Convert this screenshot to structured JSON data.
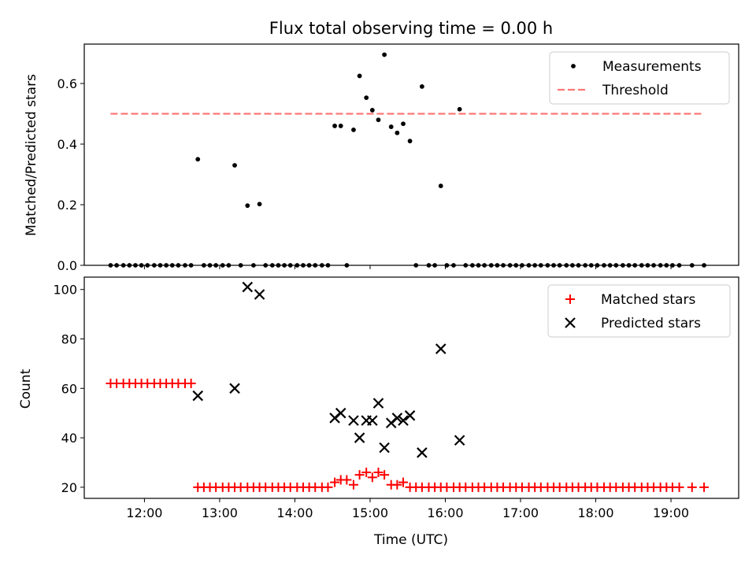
{
  "chart_data": [
    {
      "type": "scatter",
      "title": "Flux total observing time = 0.00 h",
      "xlabel": "",
      "ylabel": "Matched/Predicted stars",
      "xlim": [
        11.2,
        19.9
      ],
      "ylim": [
        0,
        0.73
      ],
      "yticks": [
        "0.0",
        "0.2",
        "0.4",
        "0.6"
      ],
      "grid": false,
      "legend_position": "top-right",
      "series": [
        {
          "name": "Measurements",
          "kind": "scatter",
          "marker": "dot",
          "color": "#000000",
          "points": [
            [
              11.55,
              0
            ],
            [
              11.63,
              0
            ],
            [
              11.72,
              0
            ],
            [
              11.8,
              0
            ],
            [
              11.88,
              0
            ],
            [
              11.96,
              0
            ],
            [
              12.04,
              0
            ],
            [
              12.13,
              0
            ],
            [
              12.21,
              0
            ],
            [
              12.29,
              0
            ],
            [
              12.37,
              0
            ],
            [
              12.45,
              0
            ],
            [
              12.54,
              0
            ],
            [
              12.62,
              0
            ],
            [
              12.71,
              0.35
            ],
            [
              12.79,
              0
            ],
            [
              12.87,
              0
            ],
            [
              12.95,
              0
            ],
            [
              13.04,
              0
            ],
            [
              13.12,
              0
            ],
            [
              13.2,
              0.33
            ],
            [
              13.28,
              0
            ],
            [
              13.37,
              0.197
            ],
            [
              13.45,
              0
            ],
            [
              13.53,
              0.202
            ],
            [
              13.61,
              0
            ],
            [
              13.7,
              0
            ],
            [
              13.78,
              0
            ],
            [
              13.86,
              0
            ],
            [
              13.94,
              0
            ],
            [
              14.03,
              0
            ],
            [
              14.11,
              0
            ],
            [
              14.19,
              0
            ],
            [
              14.27,
              0
            ],
            [
              14.36,
              0
            ],
            [
              14.44,
              0
            ],
            [
              14.53,
              0.46
            ],
            [
              14.61,
              0.46
            ],
            [
              14.69,
              0
            ],
            [
              14.78,
              0.447
            ],
            [
              14.86,
              0.625
            ],
            [
              14.95,
              0.553
            ],
            [
              15.03,
              0.512
            ],
            [
              15.11,
              0.48
            ],
            [
              15.19,
              0.695
            ],
            [
              15.28,
              0.457
            ],
            [
              15.36,
              0.437
            ],
            [
              15.44,
              0.467
            ],
            [
              15.53,
              0.41
            ],
            [
              15.61,
              0
            ],
            [
              15.69,
              0.59
            ],
            [
              15.78,
              0
            ],
            [
              15.86,
              0
            ],
            [
              15.94,
              0.262
            ],
            [
              16.02,
              0
            ],
            [
              16.11,
              0
            ],
            [
              16.19,
              0.515
            ],
            [
              16.27,
              0
            ],
            [
              16.36,
              0
            ],
            [
              16.44,
              0
            ],
            [
              16.52,
              0
            ],
            [
              16.61,
              0
            ],
            [
              16.69,
              0
            ],
            [
              16.77,
              0
            ],
            [
              16.86,
              0
            ],
            [
              16.94,
              0
            ],
            [
              17.02,
              0
            ],
            [
              17.11,
              0
            ],
            [
              17.19,
              0
            ],
            [
              17.27,
              0
            ],
            [
              17.36,
              0
            ],
            [
              17.44,
              0
            ],
            [
              17.52,
              0
            ],
            [
              17.61,
              0
            ],
            [
              17.69,
              0
            ],
            [
              17.77,
              0
            ],
            [
              17.86,
              0
            ],
            [
              17.94,
              0
            ],
            [
              18.02,
              0
            ],
            [
              18.11,
              0
            ],
            [
              18.19,
              0
            ],
            [
              18.27,
              0
            ],
            [
              18.36,
              0
            ],
            [
              18.44,
              0
            ],
            [
              18.52,
              0
            ],
            [
              18.61,
              0
            ],
            [
              18.69,
              0
            ],
            [
              18.77,
              0
            ],
            [
              18.86,
              0
            ],
            [
              18.94,
              0
            ],
            [
              19.02,
              0
            ],
            [
              19.11,
              0
            ],
            [
              19.28,
              0
            ],
            [
              19.44,
              0
            ]
          ]
        },
        {
          "name": "Threshold",
          "kind": "line",
          "style": "dashed",
          "color": "#ff7777",
          "points": [
            [
              11.55,
              0.5
            ],
            [
              19.44,
              0.5
            ]
          ]
        }
      ]
    },
    {
      "type": "scatter",
      "title": "",
      "xlabel": "Time (UTC)",
      "ylabel": "Count",
      "xlim": [
        11.2,
        19.9
      ],
      "ylim": [
        15.5,
        105
      ],
      "yticks": [
        "20",
        "40",
        "60",
        "80",
        "100"
      ],
      "xticks": [
        "12:00",
        "13:00",
        "14:00",
        "15:00",
        "16:00",
        "17:00",
        "18:00",
        "19:00"
      ],
      "grid": false,
      "legend_position": "top-right",
      "series": [
        {
          "name": "Matched stars",
          "kind": "scatter",
          "marker": "plus",
          "color": "#ff0000",
          "points": [
            [
              11.55,
              62
            ],
            [
              11.63,
              62
            ],
            [
              11.72,
              62
            ],
            [
              11.8,
              62
            ],
            [
              11.88,
              62
            ],
            [
              11.96,
              62
            ],
            [
              12.04,
              62
            ],
            [
              12.13,
              62
            ],
            [
              12.21,
              62
            ],
            [
              12.29,
              62
            ],
            [
              12.37,
              62
            ],
            [
              12.45,
              62
            ],
            [
              12.54,
              62
            ],
            [
              12.62,
              62
            ],
            [
              12.71,
              20
            ],
            [
              12.79,
              20
            ],
            [
              12.87,
              20
            ],
            [
              12.95,
              20
            ],
            [
              13.04,
              20
            ],
            [
              13.12,
              20
            ],
            [
              13.2,
              20
            ],
            [
              13.28,
              20
            ],
            [
              13.37,
              20
            ],
            [
              13.45,
              20
            ],
            [
              13.53,
              20
            ],
            [
              13.61,
              20
            ],
            [
              13.7,
              20
            ],
            [
              13.78,
              20
            ],
            [
              13.86,
              20
            ],
            [
              13.94,
              20
            ],
            [
              14.03,
              20
            ],
            [
              14.11,
              20
            ],
            [
              14.19,
              20
            ],
            [
              14.27,
              20
            ],
            [
              14.36,
              20
            ],
            [
              14.44,
              20
            ],
            [
              14.53,
              22
            ],
            [
              14.61,
              23
            ],
            [
              14.69,
              23
            ],
            [
              14.78,
              21
            ],
            [
              14.86,
              25
            ],
            [
              14.95,
              26
            ],
            [
              15.03,
              24
            ],
            [
              15.11,
              26
            ],
            [
              15.19,
              25
            ],
            [
              15.28,
              21
            ],
            [
              15.36,
              21
            ],
            [
              15.44,
              22
            ],
            [
              15.53,
              20
            ],
            [
              15.61,
              20
            ],
            [
              15.69,
              20
            ],
            [
              15.78,
              20
            ],
            [
              15.86,
              20
            ],
            [
              15.94,
              20
            ],
            [
              16.02,
              20
            ],
            [
              16.11,
              20
            ],
            [
              16.19,
              20
            ],
            [
              16.27,
              20
            ],
            [
              16.36,
              20
            ],
            [
              16.44,
              20
            ],
            [
              16.52,
              20
            ],
            [
              16.61,
              20
            ],
            [
              16.69,
              20
            ],
            [
              16.77,
              20
            ],
            [
              16.86,
              20
            ],
            [
              16.94,
              20
            ],
            [
              17.02,
              20
            ],
            [
              17.11,
              20
            ],
            [
              17.19,
              20
            ],
            [
              17.27,
              20
            ],
            [
              17.36,
              20
            ],
            [
              17.44,
              20
            ],
            [
              17.52,
              20
            ],
            [
              17.61,
              20
            ],
            [
              17.69,
              20
            ],
            [
              17.77,
              20
            ],
            [
              17.86,
              20
            ],
            [
              17.94,
              20
            ],
            [
              18.02,
              20
            ],
            [
              18.11,
              20
            ],
            [
              18.19,
              20
            ],
            [
              18.27,
              20
            ],
            [
              18.36,
              20
            ],
            [
              18.44,
              20
            ],
            [
              18.52,
              20
            ],
            [
              18.61,
              20
            ],
            [
              18.69,
              20
            ],
            [
              18.77,
              20
            ],
            [
              18.86,
              20
            ],
            [
              18.94,
              20
            ],
            [
              19.02,
              20
            ],
            [
              19.11,
              20
            ],
            [
              19.28,
              20
            ],
            [
              19.44,
              20
            ]
          ]
        },
        {
          "name": "Predicted stars",
          "kind": "scatter",
          "marker": "x",
          "color": "#000000",
          "points": [
            [
              12.71,
              57
            ],
            [
              13.2,
              60
            ],
            [
              13.37,
              101
            ],
            [
              13.53,
              98
            ],
            [
              14.53,
              48
            ],
            [
              14.61,
              50
            ],
            [
              14.78,
              47
            ],
            [
              14.86,
              40
            ],
            [
              14.95,
              47
            ],
            [
              15.03,
              47
            ],
            [
              15.11,
              54
            ],
            [
              15.19,
              36
            ],
            [
              15.28,
              46
            ],
            [
              15.36,
              48
            ],
            [
              15.44,
              47
            ],
            [
              15.53,
              49
            ],
            [
              15.69,
              34
            ],
            [
              15.94,
              76
            ],
            [
              16.19,
              39
            ]
          ]
        }
      ]
    }
  ]
}
